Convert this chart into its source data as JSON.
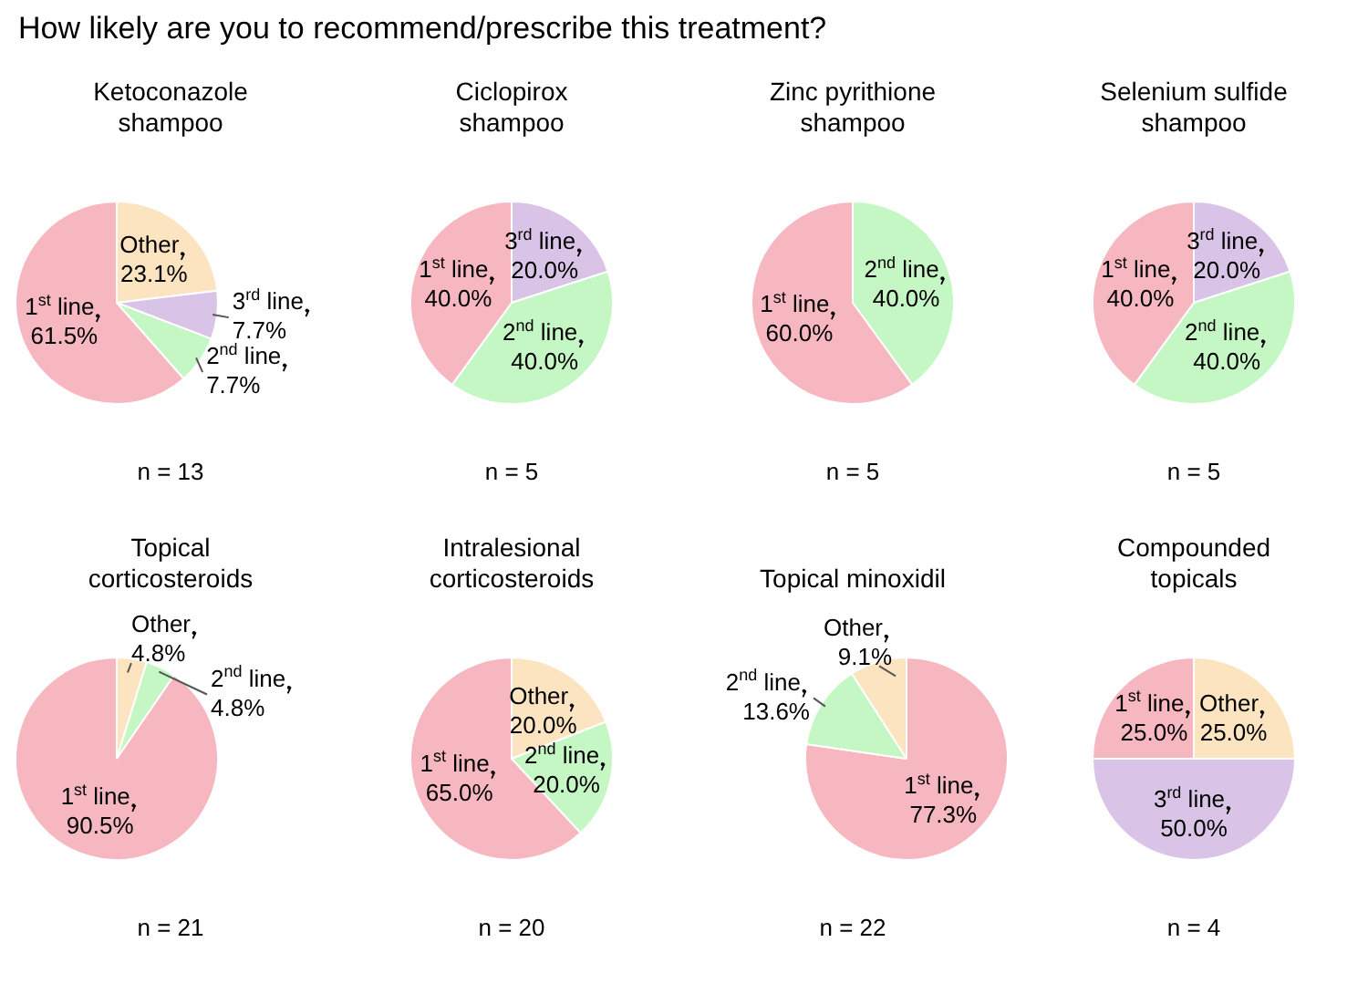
{
  "chart_data": [
    {
      "type": "other",
      "title": "How likely are you to recommend/prescribe this treatment?"
    },
    {
      "type": "pie",
      "title": "Ketoconazole shampoo",
      "categories": [
        "Other",
        "3$^{rd}$ line",
        "2$^{nd}$ line",
        "1$^{st}$ line"
      ],
      "values": [
        23.1,
        7.7,
        7.7,
        61.5
      ],
      "value_labels": [
        "23.1%",
        "7.7%",
        "7.7%",
        "61.5%"
      ],
      "colors": [
        "#fce4c1",
        "#d9c3e6",
        "#c4f7c4",
        "#f7b7c0"
      ],
      "annotations": [
        "n = 13"
      ]
    },
    {
      "type": "pie",
      "title": "Ciclopirox shampoo",
      "categories": [
        "3$^{rd}$ line",
        "2$^{nd}$ line",
        "1$^{st}$ line"
      ],
      "values": [
        20.0,
        40.0,
        40.0
      ],
      "value_labels": [
        "20.0%",
        "40.0%",
        "40.0%"
      ],
      "colors": [
        "#d9c3e6",
        "#c4f7c4",
        "#f7b7c0"
      ],
      "annotations": [
        "n = 5"
      ]
    },
    {
      "type": "pie",
      "title": "Zinc pyrithione shampoo",
      "categories": [
        "2$^{nd}$ line",
        "1$^{st}$ line"
      ],
      "values": [
        40.0,
        60.0
      ],
      "value_labels": [
        "40.0%",
        "60.0%"
      ],
      "colors": [
        "#c4f7c4",
        "#f7b7c0"
      ],
      "annotations": [
        "n = 5"
      ]
    },
    {
      "type": "pie",
      "title": "Selenium sulfide shampoo",
      "categories": [
        "3$^{rd}$ line",
        "2$^{nd}$ line",
        "1$^{st}$ line"
      ],
      "values": [
        20.0,
        40.0,
        40.0
      ],
      "value_labels": [
        "20.0%",
        "40.0%",
        "40.0%"
      ],
      "colors": [
        "#d9c3e6",
        "#c4f7c4",
        "#f7b7c0"
      ],
      "annotations": [
        "n = 5"
      ]
    },
    {
      "type": "pie",
      "title": "Topical corticosteroids",
      "categories": [
        "Other",
        "2$^{nd}$ line",
        "1$^{st}$ line"
      ],
      "values": [
        4.8,
        4.8,
        90.5
      ],
      "value_labels": [
        "4.8%",
        "4.8%",
        "90.5%"
      ],
      "colors": [
        "#fce4c1",
        "#c4f7c4",
        "#f7b7c0"
      ],
      "annotations": [
        "n = 21"
      ]
    },
    {
      "type": "pie",
      "title": "Intralesional corticosteroids",
      "categories": [
        "Other",
        "2$^{nd}$ line",
        "1$^{st}$ line"
      ],
      "values": [
        20.0,
        20.0,
        65.0
      ],
      "value_labels": [
        "20.0%",
        "20.0%",
        "65.0%"
      ],
      "colors": [
        "#fce4c1",
        "#c4f7c4",
        "#f7b7c0"
      ],
      "annotations": [
        "n = 20"
      ]
    },
    {
      "type": "pie",
      "title": "Topical minoxidil",
      "categories": [
        "1$^{st}$ line",
        "2$^{nd}$ line",
        "Other"
      ],
      "values": [
        77.3,
        13.6,
        9.1
      ],
      "value_labels": [
        "77.3%",
        "13.6%",
        "9.1%"
      ],
      "colors": [
        "#f7b7c0",
        "#c4f7c4",
        "#fce4c1"
      ],
      "annotations": [
        "n = 22"
      ]
    },
    {
      "type": "pie",
      "title": "Compounded topicals",
      "categories": [
        "Other",
        "3$^{rd}$ line",
        "1$^{st}$ line"
      ],
      "values": [
        25.0,
        50.0,
        25.0
      ],
      "value_labels": [
        "25.0%",
        "50.0%",
        "25.0%"
      ],
      "colors": [
        "#fce4c1",
        "#d9c3e6",
        "#f7b7c0"
      ],
      "annotations": [
        "n = 4"
      ]
    }
  ]
}
